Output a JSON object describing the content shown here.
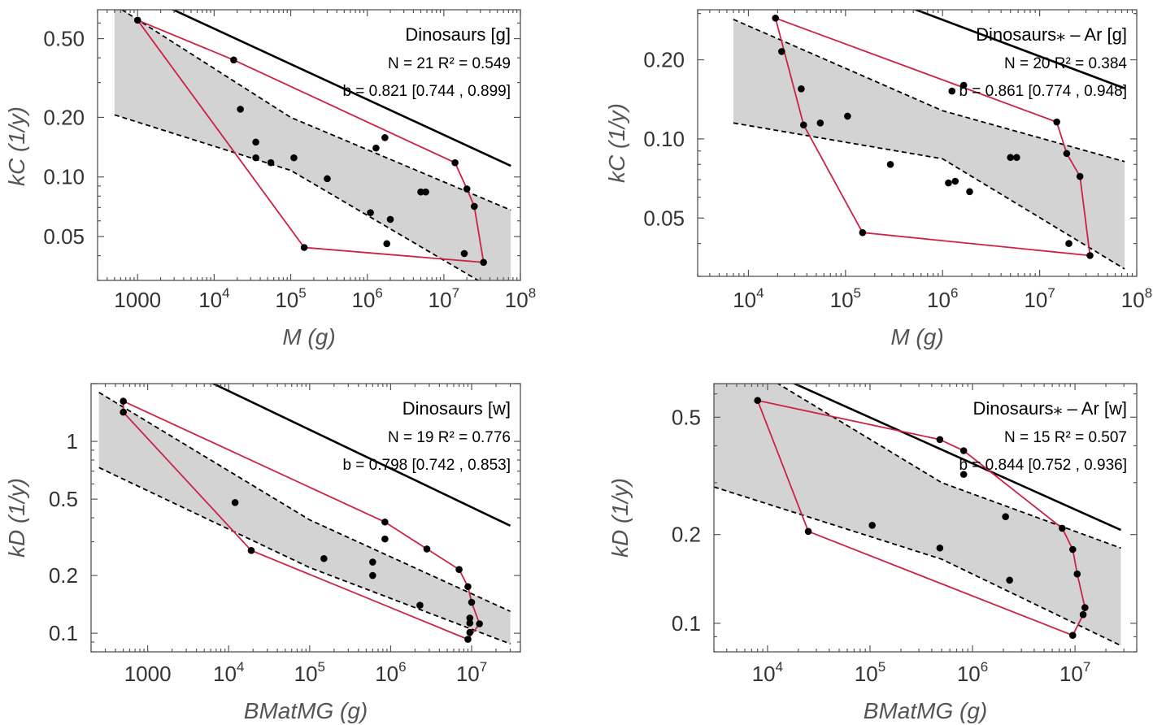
{
  "chart_data": [
    {
      "type": "scatter",
      "title": "Dinosaurs [g]",
      "stats": {
        "n": "N = 21",
        "r2": "R² = 0.549",
        "b": "b = 0.821   [0.744 , 0.899]"
      },
      "xlabel": "M  (g)",
      "ylabel": "kC  (1/y)",
      "x_scale": "log",
      "y_scale": "log",
      "xlim": [
        300,
        100000000
      ],
      "ylim": [
        0.03,
        0.7
      ],
      "x_ticks": [
        {
          "v": 1000,
          "label": "1000"
        },
        {
          "v": 10000,
          "base": "10",
          "exp": "4"
        },
        {
          "v": 100000,
          "base": "10",
          "exp": "5"
        },
        {
          "v": 1000000,
          "base": "10",
          "exp": "6"
        },
        {
          "v": 10000000,
          "base": "10",
          "exp": "7"
        },
        {
          "v": 100000000,
          "base": "10",
          "exp": "8"
        }
      ],
      "y_ticks": [
        {
          "v": 0.05,
          "label": "0.05"
        },
        {
          "v": 0.1,
          "label": "0.10"
        },
        {
          "v": 0.2,
          "label": "0.20"
        },
        {
          "v": 0.5,
          "label": "0.50"
        }
      ],
      "fit": {
        "x_range": [
          500,
          75000000
        ],
        "a": 0.372,
        "b": -0.179
      },
      "ci_upper": [
        [
          500,
          0.74
        ],
        [
          100000,
          0.2
        ],
        [
          75000000,
          0.068
        ]
      ],
      "ci_lower": [
        [
          500,
          0.206
        ],
        [
          100000,
          0.108
        ],
        [
          75000000,
          0.024
        ]
      ],
      "points": [
        {
          "x": 1000,
          "y": 0.62
        },
        {
          "x": 18000,
          "y": 0.39
        },
        {
          "x": 22000,
          "y": 0.22
        },
        {
          "x": 35000,
          "y": 0.15
        },
        {
          "x": 35000,
          "y": 0.125
        },
        {
          "x": 55000,
          "y": 0.118
        },
        {
          "x": 110000,
          "y": 0.125
        },
        {
          "x": 150000,
          "y": 0.044
        },
        {
          "x": 300000,
          "y": 0.098
        },
        {
          "x": 1100000,
          "y": 0.066
        },
        {
          "x": 1300000,
          "y": 0.14
        },
        {
          "x": 1700000,
          "y": 0.158
        },
        {
          "x": 1800000,
          "y": 0.046
        },
        {
          "x": 2000000,
          "y": 0.061
        },
        {
          "x": 5000000,
          "y": 0.084
        },
        {
          "x": 5800000,
          "y": 0.084
        },
        {
          "x": 14000000,
          "y": 0.118
        },
        {
          "x": 18500000,
          "y": 0.041
        },
        {
          "x": 20000000,
          "y": 0.087
        },
        {
          "x": 25000000,
          "y": 0.071
        },
        {
          "x": 33000000,
          "y": 0.037
        }
      ],
      "hull": [
        [
          1000,
          0.62
        ],
        [
          18000,
          0.39
        ],
        [
          14000000,
          0.118
        ],
        [
          20000000,
          0.087
        ],
        [
          25000000,
          0.071
        ],
        [
          33000000,
          0.037
        ],
        [
          150000,
          0.044
        ],
        [
          1000,
          0.62
        ]
      ]
    },
    {
      "type": "scatter",
      "title": "Dinosaurs⁎ – Ar [g]",
      "stats": {
        "n": "N = 20",
        "r2": "R² = 0.384",
        "b": "b = 0.861   [0.774 , 0.948]"
      },
      "xlabel": "M  (g)",
      "ylabel": "kC  (1/y)",
      "x_scale": "log",
      "y_scale": "log",
      "xlim": [
        3000,
        100000000
      ],
      "ylim": [
        0.03,
        0.31
      ],
      "x_ticks": [
        {
          "v": 10000,
          "base": "10",
          "exp": "4"
        },
        {
          "v": 100000,
          "base": "10",
          "exp": "5"
        },
        {
          "v": 1000000,
          "base": "10",
          "exp": "6"
        },
        {
          "v": 10000000,
          "base": "10",
          "exp": "7"
        },
        {
          "v": 100000000,
          "base": "10",
          "exp": "8"
        }
      ],
      "y_ticks": [
        {
          "v": 0.05,
          "label": "0.05"
        },
        {
          "v": 0.1,
          "label": "0.10"
        },
        {
          "v": 0.2,
          "label": "0.20"
        }
      ],
      "fit": {
        "x_range": [
          7000,
          75000000
        ],
        "a": 0.391,
        "b": -0.139
      },
      "ci_upper": [
        [
          7000,
          0.285
        ],
        [
          1000000,
          0.128
        ],
        [
          75000000,
          0.082
        ]
      ],
      "ci_lower": [
        [
          7000,
          0.115
        ],
        [
          1000000,
          0.084
        ],
        [
          75000000,
          0.032
        ]
      ],
      "points": [
        {
          "x": 19000,
          "y": 0.288
        },
        {
          "x": 22000,
          "y": 0.215
        },
        {
          "x": 35000,
          "y": 0.155
        },
        {
          "x": 37000,
          "y": 0.113
        },
        {
          "x": 55000,
          "y": 0.115
        },
        {
          "x": 105000,
          "y": 0.122
        },
        {
          "x": 150000,
          "y": 0.044
        },
        {
          "x": 290000,
          "y": 0.08
        },
        {
          "x": 1150000,
          "y": 0.068
        },
        {
          "x": 1250000,
          "y": 0.152
        },
        {
          "x": 1350000,
          "y": 0.069
        },
        {
          "x": 1650000,
          "y": 0.16
        },
        {
          "x": 1900000,
          "y": 0.063
        },
        {
          "x": 5000000,
          "y": 0.085
        },
        {
          "x": 5800000,
          "y": 0.085
        },
        {
          "x": 15000000,
          "y": 0.116
        },
        {
          "x": 19000000,
          "y": 0.088
        },
        {
          "x": 20000000,
          "y": 0.04
        },
        {
          "x": 26000000,
          "y": 0.072
        },
        {
          "x": 33000000,
          "y": 0.036
        }
      ],
      "hull": [
        [
          19000,
          0.288
        ],
        [
          15000000,
          0.116
        ],
        [
          19000000,
          0.088
        ],
        [
          26000000,
          0.072
        ],
        [
          33000000,
          0.036
        ],
        [
          150000,
          0.044
        ],
        [
          37000,
          0.113
        ],
        [
          19000,
          0.288
        ]
      ]
    },
    {
      "type": "scatter",
      "title": "Dinosaurs [w]",
      "stats": {
        "n": "N = 19",
        "r2": "R² = 0.776",
        "b": "b = 0.798   [0.742 , 0.853]"
      },
      "xlabel": "BMatMG  (g)",
      "ylabel": "kD  (1/y)",
      "x_scale": "log",
      "y_scale": "log",
      "xlim": [
        200,
        40000000
      ],
      "ylim": [
        0.08,
        2.0
      ],
      "x_ticks": [
        {
          "v": 1000,
          "label": "1000"
        },
        {
          "v": 10000,
          "base": "10",
          "exp": "4"
        },
        {
          "v": 100000,
          "base": "10",
          "exp": "5"
        },
        {
          "v": 1000000,
          "base": "10",
          "exp": "6"
        },
        {
          "v": 10000000,
          "base": "10",
          "exp": "7"
        }
      ],
      "y_ticks": [
        {
          "v": 0.1,
          "label": "0.1"
        },
        {
          "v": 0.2,
          "label": "0.2"
        },
        {
          "v": 0.5,
          "label": "0.5"
        },
        {
          "v": 1,
          "label": "1"
        }
      ],
      "fit": {
        "x_range": [
          250,
          30000000
        ],
        "a": 1.15,
        "b": -0.202
      },
      "ci_upper": [
        [
          250,
          1.8
        ],
        [
          100000,
          0.39
        ],
        [
          30000000,
          0.13
        ]
      ],
      "ci_lower": [
        [
          250,
          0.73
        ],
        [
          100000,
          0.22
        ],
        [
          30000000,
          0.088
        ]
      ],
      "points": [
        {
          "x": 500,
          "y": 1.62
        },
        {
          "x": 500,
          "y": 1.42
        },
        {
          "x": 12000,
          "y": 0.48
        },
        {
          "x": 19000,
          "y": 0.27
        },
        {
          "x": 150000,
          "y": 0.245
        },
        {
          "x": 600000,
          "y": 0.235
        },
        {
          "x": 600000,
          "y": 0.2
        },
        {
          "x": 850000,
          "y": 0.38
        },
        {
          "x": 850000,
          "y": 0.31
        },
        {
          "x": 2300000,
          "y": 0.14
        },
        {
          "x": 2800000,
          "y": 0.275
        },
        {
          "x": 7000000,
          "y": 0.215
        },
        {
          "x": 9000000,
          "y": 0.175
        },
        {
          "x": 9000000,
          "y": 0.093
        },
        {
          "x": 9500000,
          "y": 0.12
        },
        {
          "x": 9500000,
          "y": 0.113
        },
        {
          "x": 9500000,
          "y": 0.101
        },
        {
          "x": 10000000,
          "y": 0.145
        },
        {
          "x": 12500000,
          "y": 0.112
        }
      ],
      "hull": [
        [
          500,
          1.62
        ],
        [
          850000,
          0.38
        ],
        [
          2800000,
          0.275
        ],
        [
          7000000,
          0.215
        ],
        [
          9000000,
          0.175
        ],
        [
          10000000,
          0.145
        ],
        [
          12500000,
          0.112
        ],
        [
          9000000,
          0.093
        ],
        [
          19000,
          0.27
        ],
        [
          500,
          1.42
        ],
        [
          500,
          1.62
        ]
      ]
    },
    {
      "type": "scatter",
      "title": "Dinosaurs⁎ – Ar [w]",
      "stats": {
        "n": "N = 15",
        "r2": "R² = 0.507",
        "b": "b = 0.844   [0.752 , 0.936]"
      },
      "xlabel": "BMatMG  (g)",
      "ylabel": "kD  (1/y)",
      "x_scale": "log",
      "y_scale": "log",
      "xlim": [
        3000,
        40000000
      ],
      "ylim": [
        0.08,
        0.65
      ],
      "x_ticks": [
        {
          "v": 10000,
          "base": "10",
          "exp": "4"
        },
        {
          "v": 100000,
          "base": "10",
          "exp": "5"
        },
        {
          "v": 1000000,
          "base": "10",
          "exp": "6"
        },
        {
          "v": 10000000,
          "base": "10",
          "exp": "7"
        }
      ],
      "y_ticks": [
        {
          "v": 0.1,
          "label": "0.1"
        },
        {
          "v": 0.2,
          "label": "0.2"
        },
        {
          "v": 0.5,
          "label": "0.5"
        }
      ],
      "fit": {
        "x_range": [
          3000,
          28000000
        ],
        "a": 0.499,
        "b": -0.156
      },
      "ci_upper": [
        [
          3000,
          0.88
        ],
        [
          500000,
          0.3
        ],
        [
          28000000,
          0.18
        ]
      ],
      "ci_lower": [
        [
          3000,
          0.29
        ],
        [
          500000,
          0.165
        ],
        [
          28000000,
          0.084
        ]
      ],
      "points": [
        {
          "x": 8000,
          "y": 0.57
        },
        {
          "x": 25000,
          "y": 0.205
        },
        {
          "x": 105000,
          "y": 0.215
        },
        {
          "x": 480000,
          "y": 0.42
        },
        {
          "x": 480000,
          "y": 0.18
        },
        {
          "x": 820000,
          "y": 0.385
        },
        {
          "x": 820000,
          "y": 0.32
        },
        {
          "x": 2100000,
          "y": 0.23
        },
        {
          "x": 2300000,
          "y": 0.14
        },
        {
          "x": 7500000,
          "y": 0.21
        },
        {
          "x": 9500000,
          "y": 0.178
        },
        {
          "x": 9500000,
          "y": 0.091
        },
        {
          "x": 10500000,
          "y": 0.147
        },
        {
          "x": 12000000,
          "y": 0.107
        },
        {
          "x": 12500000,
          "y": 0.113
        }
      ],
      "hull": [
        [
          8000,
          0.57
        ],
        [
          480000,
          0.42
        ],
        [
          820000,
          0.385
        ],
        [
          7500000,
          0.21
        ],
        [
          9500000,
          0.178
        ],
        [
          10500000,
          0.147
        ],
        [
          12500000,
          0.113
        ],
        [
          12000000,
          0.107
        ],
        [
          9500000,
          0.091
        ],
        [
          25000,
          0.205
        ],
        [
          8000,
          0.57
        ]
      ]
    }
  ],
  "colors": {
    "hull": "#cc2244",
    "fit": "#000000",
    "band": "#d3d3d3",
    "point": "#000000",
    "frame": "#555555"
  }
}
